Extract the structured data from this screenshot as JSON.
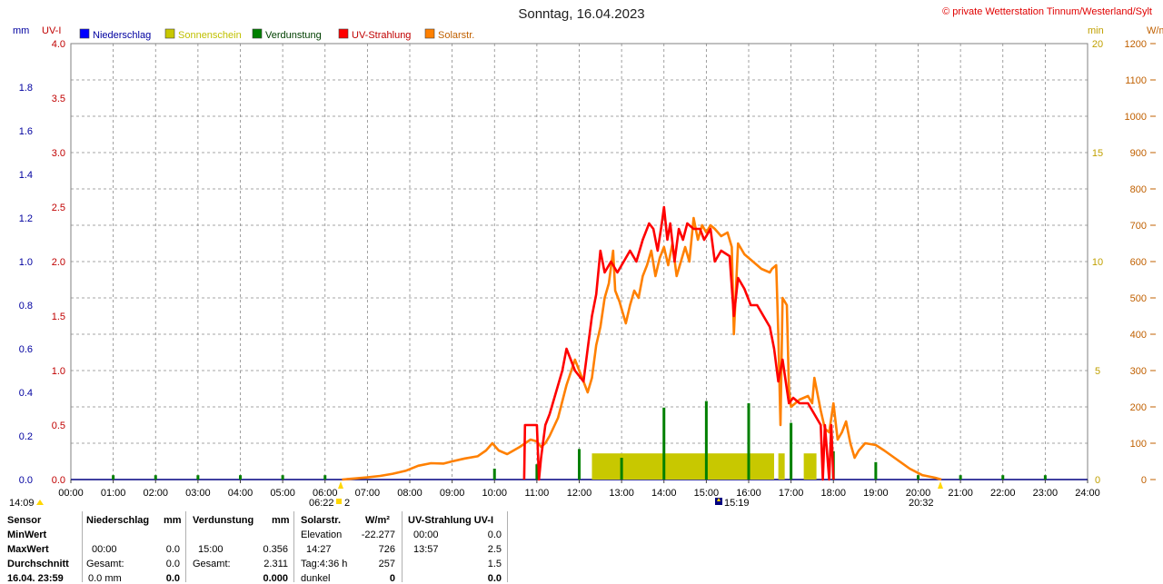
{
  "header": {
    "title": "Sonntag, 16.04.2023",
    "credit": "© private Wetterstation Tinnum/Westerland/Sylt",
    "left_unit_1": "mm",
    "left_unit_2": "UV-I",
    "right_unit_1": "min",
    "right_unit_2": "W/m²"
  },
  "legend": [
    {
      "label": "Niederschlag",
      "color": "#0000ff",
      "text_color": "#0000a0"
    },
    {
      "label": "Sonnenschein",
      "color": "#c8c800",
      "text_color": "#c0c000"
    },
    {
      "label": "Verdunstung",
      "color": "#008000",
      "text_color": "#004000"
    },
    {
      "label": "UV-Strahlung",
      "color": "#ff0000",
      "text_color": "#c00000"
    },
    {
      "label": "Solarstr.",
      "color": "#ff8000",
      "text_color": "#c06000"
    }
  ],
  "markers": {
    "left_time": "14:09",
    "sunrise": "06:22",
    "sunrise_extra": "2",
    "noon": "15:19",
    "sunset": "20:32"
  },
  "chart_data": {
    "type": "line",
    "x_label_format": "HH:MM",
    "x_ticks": [
      "00:00",
      "01:00",
      "02:00",
      "03:00",
      "04:00",
      "05:00",
      "06:00",
      "07:00",
      "08:00",
      "09:00",
      "10:00",
      "11:00",
      "12:00",
      "13:00",
      "14:00",
      "15:00",
      "16:00",
      "17:00",
      "18:00",
      "19:00",
      "20:00",
      "21:00",
      "22:00",
      "23:00",
      "24:00"
    ],
    "axes": {
      "mm": {
        "range": [
          0,
          2.0
        ],
        "ticks": [
          "0.0",
          "0.2",
          "0.4",
          "0.6",
          "0.8",
          "1.0",
          "1.2",
          "1.4",
          "1.6",
          "1.8"
        ],
        "color": "#0000a0"
      },
      "uvi": {
        "range": [
          0,
          4.0
        ],
        "ticks": [
          "0.0",
          "0.5",
          "1.0",
          "1.5",
          "2.0",
          "2.5",
          "3.0",
          "3.5",
          "4.0"
        ],
        "color": "#c00000"
      },
      "min": {
        "range": [
          0,
          20
        ],
        "ticks": [
          "0",
          "5",
          "10",
          "15",
          "20"
        ],
        "color": "#c0a000"
      },
      "wm2": {
        "range": [
          0,
          1200
        ],
        "ticks": [
          "0",
          "100",
          "200",
          "300",
          "400",
          "500",
          "600",
          "700",
          "800",
          "900",
          "1000",
          "1100",
          "1200"
        ],
        "color": "#c06000"
      }
    },
    "grid": true,
    "series": [
      {
        "name": "Solarstr.",
        "axis": "wm2",
        "color": "#ff8000",
        "points": [
          [
            6.4,
            0
          ],
          [
            6.7,
            3
          ],
          [
            7.0,
            6
          ],
          [
            7.3,
            10
          ],
          [
            7.6,
            16
          ],
          [
            7.9,
            24
          ],
          [
            8.2,
            38
          ],
          [
            8.5,
            45
          ],
          [
            8.8,
            44
          ],
          [
            9.0,
            50
          ],
          [
            9.3,
            58
          ],
          [
            9.6,
            64
          ],
          [
            9.8,
            80
          ],
          [
            9.95,
            100
          ],
          [
            10.1,
            80
          ],
          [
            10.3,
            70
          ],
          [
            10.6,
            90
          ],
          [
            10.85,
            110
          ],
          [
            11.0,
            105
          ],
          [
            11.1,
            90
          ],
          [
            11.2,
            100
          ],
          [
            11.3,
            120
          ],
          [
            11.5,
            170
          ],
          [
            11.7,
            260
          ],
          [
            11.9,
            330
          ],
          [
            12.0,
            300
          ],
          [
            12.1,
            270
          ],
          [
            12.2,
            240
          ],
          [
            12.3,
            280
          ],
          [
            12.4,
            370
          ],
          [
            12.5,
            420
          ],
          [
            12.6,
            500
          ],
          [
            12.7,
            540
          ],
          [
            12.8,
            630
          ],
          [
            12.85,
            520
          ],
          [
            12.95,
            490
          ],
          [
            13.0,
            470
          ],
          [
            13.1,
            430
          ],
          [
            13.2,
            480
          ],
          [
            13.3,
            520
          ],
          [
            13.4,
            500
          ],
          [
            13.5,
            560
          ],
          [
            13.6,
            590
          ],
          [
            13.7,
            630
          ],
          [
            13.8,
            560
          ],
          [
            13.9,
            610
          ],
          [
            14.0,
            640
          ],
          [
            14.1,
            590
          ],
          [
            14.2,
            650
          ],
          [
            14.3,
            560
          ],
          [
            14.4,
            600
          ],
          [
            14.5,
            640
          ],
          [
            14.6,
            600
          ],
          [
            14.7,
            720
          ],
          [
            14.8,
            660
          ],
          [
            14.9,
            700
          ],
          [
            15.0,
            680
          ],
          [
            15.1,
            700
          ],
          [
            15.2,
            690
          ],
          [
            15.35,
            670
          ],
          [
            15.5,
            680
          ],
          [
            15.6,
            640
          ],
          [
            15.65,
            400
          ],
          [
            15.75,
            650
          ],
          [
            15.9,
            620
          ],
          [
            16.1,
            600
          ],
          [
            16.3,
            580
          ],
          [
            16.5,
            570
          ],
          [
            16.55,
            580
          ],
          [
            16.65,
            590
          ],
          [
            16.7,
            400
          ],
          [
            16.75,
            150
          ],
          [
            16.8,
            500
          ],
          [
            16.9,
            480
          ],
          [
            16.95,
            250
          ],
          [
            17.0,
            200
          ],
          [
            17.2,
            220
          ],
          [
            17.4,
            230
          ],
          [
            17.5,
            210
          ],
          [
            17.55,
            280
          ],
          [
            17.7,
            190
          ],
          [
            17.8,
            140
          ],
          [
            17.9,
            130
          ],
          [
            18.0,
            210
          ],
          [
            18.1,
            110
          ],
          [
            18.2,
            130
          ],
          [
            18.3,
            160
          ],
          [
            18.4,
            100
          ],
          [
            18.5,
            60
          ],
          [
            18.6,
            80
          ],
          [
            18.75,
            100
          ],
          [
            19.0,
            95
          ],
          [
            19.2,
            80
          ],
          [
            19.5,
            55
          ],
          [
            19.8,
            30
          ],
          [
            20.1,
            12
          ],
          [
            20.4,
            5
          ],
          [
            20.55,
            0
          ]
        ]
      },
      {
        "name": "UV-Strahlung",
        "axis": "uvi",
        "color": "#ff0000",
        "points": [
          [
            10.7,
            0
          ],
          [
            10.72,
            0.5
          ],
          [
            11.0,
            0.5
          ],
          [
            11.05,
            0
          ],
          [
            11.1,
            0.2
          ],
          [
            11.2,
            0.5
          ],
          [
            11.3,
            0.6
          ],
          [
            11.45,
            0.8
          ],
          [
            11.6,
            1.0
          ],
          [
            11.7,
            1.2
          ],
          [
            11.8,
            1.1
          ],
          [
            11.9,
            1.0
          ],
          [
            12.0,
            0.95
          ],
          [
            12.1,
            0.9
          ],
          [
            12.2,
            1.2
          ],
          [
            12.3,
            1.5
          ],
          [
            12.4,
            1.7
          ],
          [
            12.5,
            2.1
          ],
          [
            12.6,
            1.9
          ],
          [
            12.75,
            2.0
          ],
          [
            12.9,
            1.9
          ],
          [
            13.05,
            2.0
          ],
          [
            13.2,
            2.1
          ],
          [
            13.35,
            2.0
          ],
          [
            13.5,
            2.2
          ],
          [
            13.65,
            2.35
          ],
          [
            13.75,
            2.3
          ],
          [
            13.85,
            2.1
          ],
          [
            13.95,
            2.35
          ],
          [
            14.0,
            2.5
          ],
          [
            14.08,
            2.2
          ],
          [
            14.15,
            2.35
          ],
          [
            14.25,
            2.0
          ],
          [
            14.35,
            2.3
          ],
          [
            14.45,
            2.2
          ],
          [
            14.55,
            2.35
          ],
          [
            14.7,
            2.3
          ],
          [
            14.85,
            2.3
          ],
          [
            14.95,
            2.2
          ],
          [
            15.1,
            2.3
          ],
          [
            15.2,
            2.0
          ],
          [
            15.35,
            2.1
          ],
          [
            15.55,
            2.05
          ],
          [
            15.65,
            1.5
          ],
          [
            15.75,
            1.85
          ],
          [
            15.9,
            1.75
          ],
          [
            16.05,
            1.6
          ],
          [
            16.2,
            1.6
          ],
          [
            16.35,
            1.5
          ],
          [
            16.5,
            1.4
          ],
          [
            16.6,
            1.2
          ],
          [
            16.7,
            0.9
          ],
          [
            16.8,
            1.1
          ],
          [
            16.95,
            0.7
          ],
          [
            17.05,
            0.75
          ],
          [
            17.2,
            0.7
          ],
          [
            17.4,
            0.7
          ],
          [
            17.55,
            0.6
          ],
          [
            17.7,
            0.5
          ],
          [
            17.75,
            0
          ],
          [
            17.8,
            0.5
          ],
          [
            17.9,
            0
          ],
          [
            17.95,
            0.5
          ],
          [
            18.0,
            0
          ]
        ]
      }
    ],
    "bars": [
      {
        "name": "Sonnenschein",
        "axis": "min",
        "color": "#c8c800",
        "blocks": [
          [
            12.3,
            16.6,
            1.2
          ],
          [
            16.7,
            16.85,
            1.2
          ],
          [
            17.3,
            17.6,
            1.2
          ]
        ]
      },
      {
        "name": "Verdunstung",
        "axis": "mm",
        "color": "#008000",
        "spikes": [
          [
            1,
            0.02
          ],
          [
            2,
            0.02
          ],
          [
            3,
            0.02
          ],
          [
            4,
            0.02
          ],
          [
            5,
            0.02
          ],
          [
            6,
            0.02
          ],
          [
            10,
            0.05
          ],
          [
            11,
            0.07
          ],
          [
            12,
            0.14
          ],
          [
            13,
            0.1
          ],
          [
            14,
            0.33
          ],
          [
            15,
            0.36
          ],
          [
            16,
            0.35
          ],
          [
            17,
            0.26
          ],
          [
            18,
            0.13
          ],
          [
            19,
            0.08
          ],
          [
            20,
            0.02
          ],
          [
            21,
            0.02
          ],
          [
            22,
            0.02
          ],
          [
            23,
            0.02
          ]
        ]
      }
    ]
  },
  "stats": {
    "headers": {
      "sensor": "Sensor",
      "niederschlag": "Niederschlag",
      "niederschlag_unit": "mm",
      "verdunstung": "Verdunstung",
      "verdunstung_unit": "mm",
      "solar": "Solarstr.",
      "solar_unit": "W/m²",
      "uv": "UV-Strahlung UV-I"
    },
    "rows": {
      "minwert": "MinWert",
      "maxwert": "MaxWert",
      "durchschnitt": "Durchschnitt",
      "datum": "16.04. 23:59"
    },
    "niederschlag": {
      "max_time": "00:00",
      "max_val": "0.0",
      "gesamt_label": "Gesamt:",
      "gesamt_val": "0.0",
      "bottom_a": "0.0 mm",
      "bottom_b": "0.0"
    },
    "verdunstung": {
      "max_time": "15:00",
      "max_val": "0.356",
      "gesamt_label": "Gesamt:",
      "gesamt_val": "2.311",
      "bottom_b": "0.000"
    },
    "solar": {
      "elev_label": "Elevation",
      "elev_val": "-22.277",
      "max_time": "14:27",
      "max_val": "726",
      "tag_label": "Tag:4:36 h",
      "tag_val": "257",
      "dunkel_label": "dunkel",
      "dunkel_val": "0"
    },
    "uv": {
      "min_time": "00:00",
      "min_val": "0.0",
      "max_time": "13:57",
      "max_val": "2.5",
      "avg_val": "1.5",
      "bottom_val": "0.0"
    }
  }
}
